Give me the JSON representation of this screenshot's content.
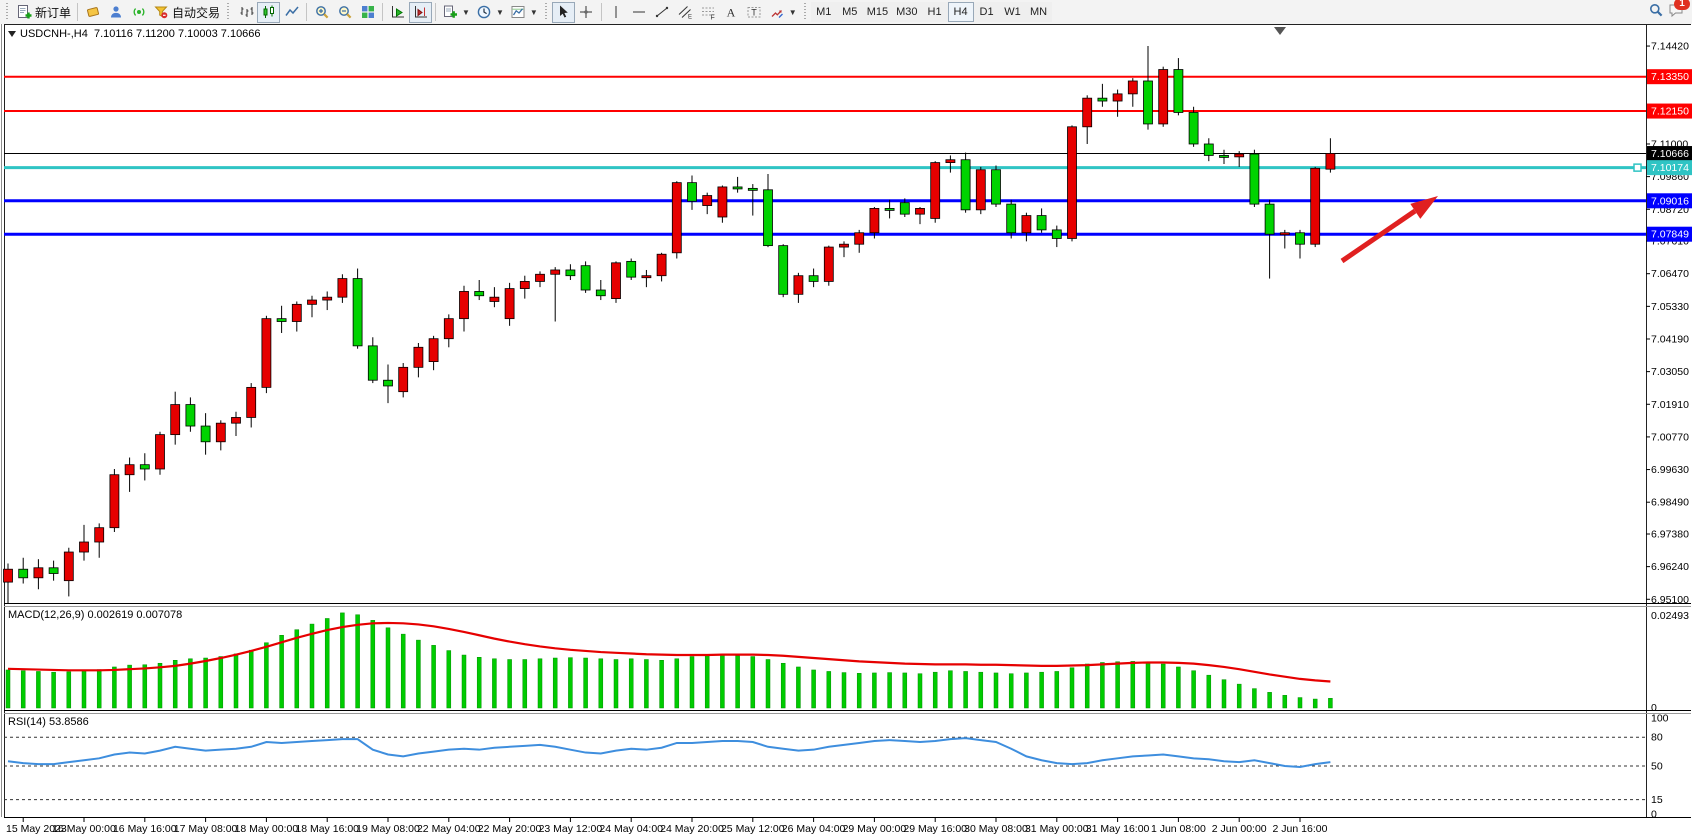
{
  "toolbar": {
    "groups": [
      {
        "name": "trade",
        "grip": true,
        "buttons": [
          {
            "name": "new-order",
            "icon": "new-order",
            "label": "新订单"
          }
        ]
      },
      {
        "name": "services",
        "sep": true,
        "buttons": [
          {
            "name": "editor",
            "icon": "editor"
          },
          {
            "name": "community",
            "icon": "community"
          },
          {
            "name": "signals",
            "icon": "signals"
          },
          {
            "name": "autotrade",
            "icon": "market",
            "label": "自动交易"
          }
        ]
      },
      {
        "name": "chart-type",
        "grip": true,
        "buttons": [
          {
            "name": "bars-chart",
            "icon": "bars"
          },
          {
            "name": "candles-chart",
            "icon": "candles",
            "pressed": true
          },
          {
            "name": "line-chart",
            "icon": "line"
          }
        ]
      },
      {
        "name": "zoom",
        "sep": true,
        "buttons": [
          {
            "name": "zoom-in",
            "icon": "zoom-in"
          },
          {
            "name": "zoom-out",
            "icon": "zoom-out"
          },
          {
            "name": "tile-windows",
            "icon": "tiles"
          }
        ]
      },
      {
        "name": "scroll",
        "sep": true,
        "buttons": [
          {
            "name": "auto-scroll",
            "icon": "autoscroll"
          },
          {
            "name": "chart-shift",
            "icon": "shift",
            "pressed": true
          }
        ]
      },
      {
        "name": "tools",
        "sep": true,
        "buttons": [
          {
            "name": "indicators",
            "icon": "indicators",
            "dropdown": true
          },
          {
            "name": "periods",
            "icon": "clock",
            "dropdown": true
          },
          {
            "name": "templates",
            "icon": "template",
            "dropdown": true
          }
        ]
      },
      {
        "name": "pointer",
        "grip": true,
        "buttons": [
          {
            "name": "cursor",
            "icon": "cursor",
            "pressed": true
          },
          {
            "name": "crosshair",
            "icon": "crosshair"
          }
        ]
      },
      {
        "name": "objects",
        "sep": true,
        "buttons": [
          {
            "name": "vertical-line",
            "icon": "vline"
          },
          {
            "name": "horizontal-line",
            "icon": "hline"
          },
          {
            "name": "trendline",
            "icon": "trendline"
          },
          {
            "name": "equidistant-channel",
            "icon": "channel"
          },
          {
            "name": "fibonacci",
            "icon": "fibo"
          },
          {
            "name": "text",
            "icon": "text-a"
          },
          {
            "name": "text-label",
            "icon": "text-label"
          },
          {
            "name": "arrows",
            "icon": "shapes",
            "dropdown": true
          }
        ]
      }
    ],
    "timeframes": {
      "grip": true,
      "options": [
        "M1",
        "M5",
        "M15",
        "M30",
        "H1",
        "H4",
        "D1",
        "W1",
        "MN"
      ],
      "active": "H4"
    },
    "right": [
      {
        "name": "search",
        "icon": "search"
      },
      {
        "name": "chat",
        "icon": "chat",
        "badge": "1"
      }
    ]
  },
  "chart": {
    "title": "USDCNH-,H4  7.10116 7.11200 7.10003 7.10666",
    "symbol": "USDCNH-",
    "timeframe": "H4",
    "ohlc": {
      "open": "7.10116",
      "high": "7.11200",
      "low": "7.10003",
      "close": "7.10666"
    },
    "levels": [
      {
        "price": "7.13350",
        "value": 7.1335,
        "color": "#ff0000",
        "width": 2,
        "badge_text": "#ffffff"
      },
      {
        "price": "7.12150",
        "value": 7.1215,
        "color": "#ff0000",
        "width": 2,
        "badge_text": "#ffffff"
      },
      {
        "price": "7.10666",
        "value": 7.10666,
        "color": "#000000",
        "width": 1,
        "badge_text": "#ffffff",
        "role": "current-price"
      },
      {
        "price": "7.10174",
        "value": 7.10174,
        "color": "#2fc4c4",
        "width": 3,
        "badge_text": "#ffffff",
        "selected": true
      },
      {
        "price": "7.09016",
        "value": 7.09016,
        "color": "#0000ff",
        "width": 3,
        "badge_text": "#ffffff"
      },
      {
        "price": "7.07849",
        "value": 7.07849,
        "color": "#0000ff",
        "width": 3,
        "badge_text": "#ffffff"
      }
    ],
    "price_ticks": [
      "7.14420",
      "7.11000",
      "7.09860",
      "7.08720",
      "7.07610",
      "7.06470",
      "7.05330",
      "7.04190",
      "7.03050",
      "7.01910",
      "7.00770",
      "6.99630",
      "6.98490",
      "6.97380",
      "6.96240",
      "6.95100"
    ],
    "time_labels": [
      "15 May 2023",
      "16 May 00:00",
      "16 May 16:00",
      "17 May 08:00",
      "18 May 00:00",
      "18 May 16:00",
      "19 May 08:00",
      "22 May 04:00",
      "22 May 20:00",
      "23 May 12:00",
      "24 May 04:00",
      "24 May 20:00",
      "25 May 12:00",
      "26 May 04:00",
      "29 May 00:00",
      "29 May 16:00",
      "30 May 08:00",
      "31 May 00:00",
      "31 May 16:00",
      "1 Jun 08:00",
      "2 Jun 00:00",
      "2 Jun 16:00"
    ],
    "arrow": {
      "color": "#e02020",
      "direction": "up-right"
    }
  },
  "macd": {
    "label": "MACD(12,26,9) 0.002619 0.007078",
    "params": "12,26,9",
    "main_value": "0.002619",
    "signal_value": "0.007078",
    "scale_max": "0.02493",
    "scale_min": "0"
  },
  "rsi": {
    "label": "RSI(14) 53.8586",
    "period": "14",
    "value": "53.8586",
    "scale": [
      "100",
      "80",
      "50",
      "15",
      "0"
    ]
  },
  "colors": {
    "candle_up": "#e60000",
    "candle_down": "#00d300",
    "candle_border": "#000000",
    "macd_histogram": "#00cc00",
    "macd_signal": "#e60000",
    "rsi_line": "#3e8ede",
    "level_red": "#ff0000",
    "level_blue": "#0000ff",
    "level_cyan": "#2fc4c4",
    "background": "#ffffff"
  },
  "chart_data": {
    "type": "candlestick",
    "symbol": "USDCNH-",
    "timeframe": "H4",
    "price_axis_range": {
      "top": 7.1519,
      "bottom": 6.9497
    },
    "macd_axis": {
      "max": 0.02493,
      "min": 0
    },
    "rsi_axis": {
      "max": 100,
      "min": 0,
      "levels": [
        80,
        50,
        15
      ]
    },
    "candles": [
      [
        6.957,
        6.9635,
        6.9495,
        6.9615
      ],
      [
        6.9615,
        6.9655,
        6.9565,
        6.9585
      ],
      [
        6.9585,
        6.965,
        6.9545,
        6.962
      ],
      [
        6.962,
        6.9645,
        6.9575,
        6.96
      ],
      [
        6.9575,
        6.969,
        6.952,
        6.9675
      ],
      [
        6.9675,
        6.977,
        6.9645,
        6.971
      ],
      [
        6.971,
        6.9775,
        6.9655,
        6.976
      ],
      [
        6.976,
        6.9965,
        6.9745,
        6.9945
      ],
      [
        6.9945,
        7.0005,
        6.9885,
        6.998
      ],
      [
        6.998,
        7.002,
        6.9925,
        6.9965
      ],
      [
        6.9965,
        7.0095,
        6.9945,
        7.0085
      ],
      [
        7.0085,
        7.0235,
        7.005,
        7.019
      ],
      [
        7.019,
        7.0215,
        7.0095,
        7.0115
      ],
      [
        7.0115,
        7.016,
        7.0015,
        7.006
      ],
      [
        7.006,
        7.0135,
        7.003,
        7.0125
      ],
      [
        7.0125,
        7.0165,
        7.008,
        7.0145
      ],
      [
        7.0145,
        7.0265,
        7.011,
        7.025
      ],
      [
        7.025,
        7.05,
        7.023,
        7.049
      ],
      [
        7.049,
        7.0535,
        7.044,
        7.048
      ],
      [
        7.048,
        7.055,
        7.0445,
        7.054
      ],
      [
        7.054,
        7.057,
        7.0495,
        7.0555
      ],
      [
        7.0555,
        7.0585,
        7.052,
        7.0565
      ],
      [
        7.0565,
        7.0645,
        7.0545,
        7.063
      ],
      [
        7.063,
        7.0665,
        7.0385,
        7.0395
      ],
      [
        7.0395,
        7.0425,
        7.0265,
        7.0275
      ],
      [
        7.0275,
        7.033,
        7.0195,
        7.0255
      ],
      [
        7.0235,
        7.0335,
        7.0215,
        7.032
      ],
      [
        7.032,
        7.0405,
        7.0285,
        7.039
      ],
      [
        7.034,
        7.043,
        7.031,
        7.042
      ],
      [
        7.042,
        7.0505,
        7.039,
        7.049
      ],
      [
        7.049,
        7.0605,
        7.0445,
        7.0585
      ],
      [
        7.0585,
        7.0625,
        7.0555,
        7.057
      ],
      [
        7.055,
        7.06,
        7.053,
        7.0565
      ],
      [
        7.049,
        7.0615,
        7.0465,
        7.0595
      ],
      [
        7.0595,
        7.064,
        7.056,
        7.062
      ],
      [
        7.062,
        7.0655,
        7.06,
        7.0645
      ],
      [
        7.0645,
        7.067,
        7.048,
        7.066
      ],
      [
        7.066,
        7.068,
        7.0625,
        7.064
      ],
      [
        7.0675,
        7.069,
        7.058,
        7.059
      ],
      [
        7.059,
        7.0625,
        7.0555,
        7.057
      ],
      [
        7.056,
        7.069,
        7.0545,
        7.0685
      ],
      [
        7.069,
        7.07,
        7.0625,
        7.0635
      ],
      [
        7.0635,
        7.066,
        7.06,
        7.064
      ],
      [
        7.064,
        7.072,
        7.062,
        7.0715
      ],
      [
        7.072,
        7.097,
        7.07,
        7.0965
      ],
      [
        7.0965,
        7.099,
        7.087,
        7.09
      ],
      [
        7.0885,
        7.093,
        7.0855,
        7.092
      ],
      [
        7.0845,
        7.0955,
        7.0825,
        7.095
      ],
      [
        7.095,
        7.0985,
        7.093,
        7.0945
      ],
      [
        7.0945,
        7.096,
        7.085,
        7.094
      ],
      [
        7.094,
        7.0995,
        7.074,
        7.0745
      ],
      [
        7.0745,
        7.075,
        7.0565,
        7.0575
      ],
      [
        7.0575,
        7.065,
        7.0545,
        7.064
      ],
      [
        7.064,
        7.0665,
        7.06,
        7.062
      ],
      [
        7.062,
        7.0745,
        7.0605,
        7.074
      ],
      [
        7.074,
        7.076,
        7.0705,
        7.075
      ],
      [
        7.075,
        7.08,
        7.072,
        7.079
      ],
      [
        7.079,
        7.088,
        7.077,
        7.0875
      ],
      [
        7.0875,
        7.0905,
        7.084,
        7.087
      ],
      [
        7.0895,
        7.091,
        7.0845,
        7.0855
      ],
      [
        7.0855,
        7.088,
        7.082,
        7.0875
      ],
      [
        7.084,
        7.104,
        7.0825,
        7.1035
      ],
      [
        7.1035,
        7.106,
        7.1,
        7.1045
      ],
      [
        7.1045,
        7.107,
        7.086,
        7.087
      ],
      [
        7.087,
        7.102,
        7.0855,
        7.101
      ],
      [
        7.101,
        7.1025,
        7.088,
        7.089
      ],
      [
        7.089,
        7.0905,
        7.077,
        7.079
      ],
      [
        7.079,
        7.086,
        7.076,
        7.085
      ],
      [
        7.085,
        7.0875,
        7.079,
        7.08
      ],
      [
        7.08,
        7.0815,
        7.074,
        7.077
      ],
      [
        7.077,
        7.1165,
        7.076,
        7.116
      ],
      [
        7.116,
        7.127,
        7.11,
        7.126
      ],
      [
        7.126,
        7.131,
        7.123,
        7.125
      ],
      [
        7.125,
        7.129,
        7.1195,
        7.1275
      ],
      [
        7.1275,
        7.133,
        7.123,
        7.132
      ],
      [
        7.132,
        7.1442,
        7.115,
        7.117
      ],
      [
        7.117,
        7.137,
        7.116,
        7.136
      ],
      [
        7.136,
        7.14,
        7.12,
        7.121
      ],
      [
        7.121,
        7.123,
        7.109,
        7.11
      ],
      [
        7.11,
        7.112,
        7.104,
        7.106
      ],
      [
        7.106,
        7.108,
        7.103,
        7.1055
      ],
      [
        7.1055,
        7.1075,
        7.102,
        7.1065
      ],
      [
        7.1065,
        7.108,
        7.088,
        7.089
      ],
      [
        7.089,
        7.0905,
        7.063,
        7.0785
      ],
      [
        7.0785,
        7.08,
        7.0735,
        7.079
      ],
      [
        7.079,
        7.08,
        7.07,
        7.075
      ],
      [
        7.075,
        7.102,
        7.074,
        7.1015
      ],
      [
        7.1012,
        7.112,
        7.1,
        7.1067
      ]
    ],
    "macd_histogram": [
      10.2,
      10.0,
      9.8,
      9.6,
      9.7,
      10.0,
      10.3,
      11.0,
      11.5,
      11.6,
      12.0,
      12.8,
      13.2,
      13.4,
      13.8,
      14.5,
      15.5,
      17.5,
      19.5,
      21.0,
      22.5,
      24.0,
      25.5,
      25.0,
      23.5,
      21.5,
      19.8,
      18.2,
      16.8,
      15.4,
      14.2,
      13.6,
      13.2,
      13.0,
      13.0,
      13.2,
      13.4,
      13.5,
      13.4,
      13.2,
      13.0,
      13.2,
      13.0,
      12.8,
      13.2,
      13.8,
      14.0,
      14.2,
      14.0,
      13.8,
      13.0,
      12.0,
      11.0,
      10.2,
      9.8,
      9.5,
      9.3,
      9.4,
      9.5,
      9.4,
      9.2,
      9.6,
      10.0,
      9.8,
      9.6,
      9.4,
      9.2,
      9.4,
      9.6,
      9.8,
      10.8,
      11.8,
      12.2,
      12.4,
      12.5,
      12.3,
      11.8,
      11.0,
      10.0,
      8.8,
      7.6,
      6.4,
      5.2,
      4.2,
      3.4,
      2.8,
      2.4,
      2.6
    ],
    "macd_signal": [
      10.5,
      10.4,
      10.3,
      10.2,
      10.1,
      10.1,
      10.1,
      10.2,
      10.4,
      10.6,
      10.9,
      11.3,
      11.9,
      12.6,
      13.4,
      14.3,
      15.3,
      16.4,
      17.6,
      18.8,
      19.9,
      20.9,
      21.7,
      22.3,
      22.7,
      22.8,
      22.7,
      22.4,
      21.9,
      21.2,
      20.4,
      19.5,
      18.6,
      17.8,
      17.1,
      16.5,
      16.0,
      15.6,
      15.3,
      15.0,
      14.8,
      14.6,
      14.4,
      14.3,
      14.2,
      14.2,
      14.2,
      14.3,
      14.3,
      14.3,
      14.2,
      14.0,
      13.7,
      13.4,
      13.1,
      12.8,
      12.5,
      12.3,
      12.1,
      11.9,
      11.8,
      11.7,
      11.7,
      11.7,
      11.6,
      11.6,
      11.5,
      11.4,
      11.3,
      11.3,
      11.4,
      11.5,
      11.7,
      11.9,
      12.1,
      12.2,
      12.2,
      12.1,
      11.9,
      11.5,
      11.0,
      10.4,
      9.7,
      9.0,
      8.4,
      7.8,
      7.4,
      7.1
    ],
    "macd_unit": 0.001,
    "rsi_values": [
      55,
      53,
      52,
      52,
      54,
      56,
      58,
      62,
      64,
      63,
      66,
      70,
      68,
      66,
      67,
      68,
      70,
      75,
      74,
      75,
      76,
      77,
      78,
      78,
      67,
      62,
      60,
      63,
      65,
      67,
      68,
      67,
      69,
      70,
      71,
      72,
      70,
      67,
      64,
      63,
      66,
      68,
      67,
      69,
      74,
      74,
      75,
      76,
      76,
      75,
      70,
      68,
      66,
      67,
      70,
      72,
      74,
      76,
      77,
      76,
      75,
      76,
      78,
      79,
      77,
      75,
      68,
      60,
      56,
      53,
      52,
      53,
      56,
      58,
      60,
      61,
      62,
      60,
      58,
      57,
      55,
      54,
      56,
      53,
      50,
      49,
      52,
      54
    ]
  }
}
